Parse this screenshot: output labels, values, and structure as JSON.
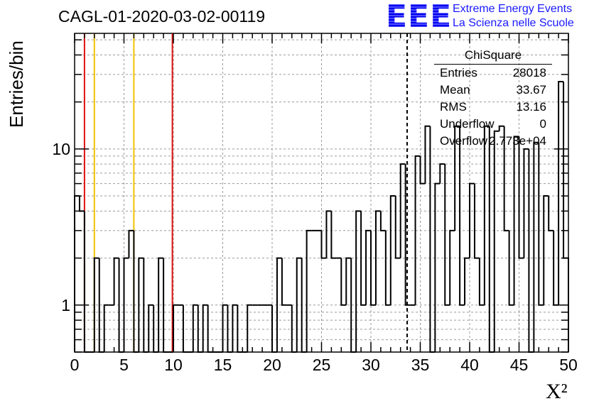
{
  "title": "CAGL-01-2020-03-02-00119",
  "logo": {
    "mark": "EEE",
    "line1": "Extreme Energy Events",
    "line2": "La Scienza nelle Scuole",
    "color": "#1a1aff"
  },
  "stats_box": {
    "title": "ChiSquare",
    "rows": [
      {
        "key": "Entries",
        "value": "28018"
      },
      {
        "key": "Mean",
        "value": "33.67"
      },
      {
        "key": "RMS",
        "value": "13.16"
      },
      {
        "key": "Underflow",
        "value": "0"
      },
      {
        "key": "Overflow",
        "value": "2.773e+04"
      }
    ]
  },
  "chart_data": {
    "type": "bar",
    "style": "step-histogram",
    "ylabel": "Entries/bin",
    "xlabel": "X²",
    "xlim": [
      0,
      50
    ],
    "ylim": [
      0.5,
      55
    ],
    "yscale": "log",
    "grid": true,
    "bin_width": 0.5,
    "x_ticks": [
      0,
      5,
      10,
      15,
      20,
      25,
      30,
      35,
      40,
      45,
      50
    ],
    "y_ticks": [
      1,
      10
    ],
    "y_tick_labels": [
      "1",
      "10"
    ],
    "values": [
      5,
      4,
      0,
      0,
      2,
      0,
      1,
      1,
      2,
      0,
      2,
      3,
      0,
      2,
      0,
      1,
      0,
      2,
      0,
      0,
      1,
      1,
      0,
      0,
      1,
      0,
      1,
      0,
      0,
      0,
      1,
      0,
      1,
      0,
      0,
      1,
      1,
      1,
      1,
      1,
      0,
      2,
      1,
      1,
      0,
      2,
      0,
      3,
      3,
      3,
      2,
      4,
      2,
      2,
      1,
      2,
      0,
      4,
      1,
      3,
      1,
      4,
      3,
      1,
      5,
      2,
      8,
      1,
      1,
      9,
      6,
      14,
      0,
      6,
      8,
      1,
      3,
      14,
      1,
      2,
      6,
      2,
      1,
      14,
      0,
      13,
      14,
      3,
      1,
      12,
      2,
      10,
      0,
      11,
      1,
      5,
      3,
      1,
      27,
      2
    ],
    "reference_lines": [
      {
        "x": 1.0,
        "color": "#e01010",
        "style": "solid"
      },
      {
        "x": 2.0,
        "color": "#f2c200",
        "style": "solid"
      },
      {
        "x": 6.0,
        "color": "#f2c200",
        "style": "solid"
      },
      {
        "x": 9.9,
        "color": "#e01010",
        "style": "solid"
      },
      {
        "x": 33.67,
        "color": "#000000",
        "style": "dashed"
      }
    ]
  }
}
